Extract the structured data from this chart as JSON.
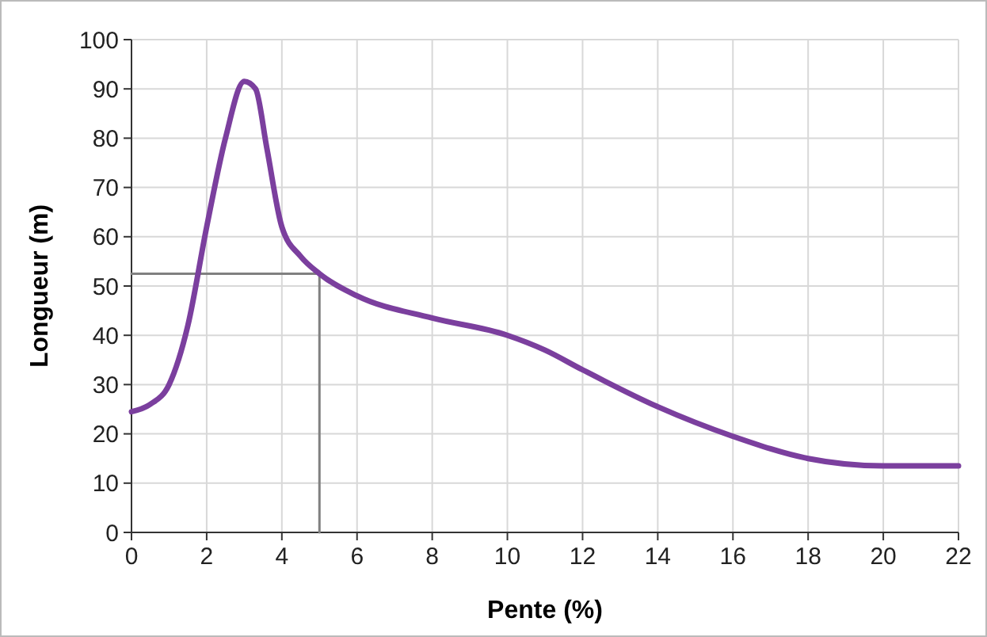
{
  "chart_data": {
    "type": "line",
    "xlabel": "Pente (%)",
    "ylabel": "Longueur (m)",
    "xlim": [
      0,
      22
    ],
    "ylim": [
      0,
      100
    ],
    "xticks": [
      0,
      2,
      4,
      6,
      8,
      10,
      12,
      14,
      16,
      18,
      20,
      22
    ],
    "yticks": [
      0,
      10,
      20,
      30,
      40,
      50,
      60,
      70,
      80,
      90,
      100
    ],
    "grid": true,
    "marker": "none",
    "line_style": "solid",
    "series": [
      {
        "color": "#7b3f9e",
        "x": [
          0,
          0.5,
          1,
          1.5,
          2,
          2.5,
          3,
          3.3,
          3.6,
          4,
          4.5,
          5,
          6,
          8,
          10,
          11,
          12,
          14,
          16,
          18,
          20,
          22
        ],
        "values": [
          24.5,
          26,
          30,
          42,
          62,
          80,
          91.5,
          90,
          78,
          62,
          56,
          52.5,
          48,
          43.5,
          40,
          37,
          33,
          25.5,
          19.5,
          15,
          13.5,
          13.5
        ]
      },
      {
        "color": "#808080",
        "x": [
          0,
          5,
          5
        ],
        "values": [
          52.5,
          52.5,
          0
        ]
      }
    ]
  }
}
